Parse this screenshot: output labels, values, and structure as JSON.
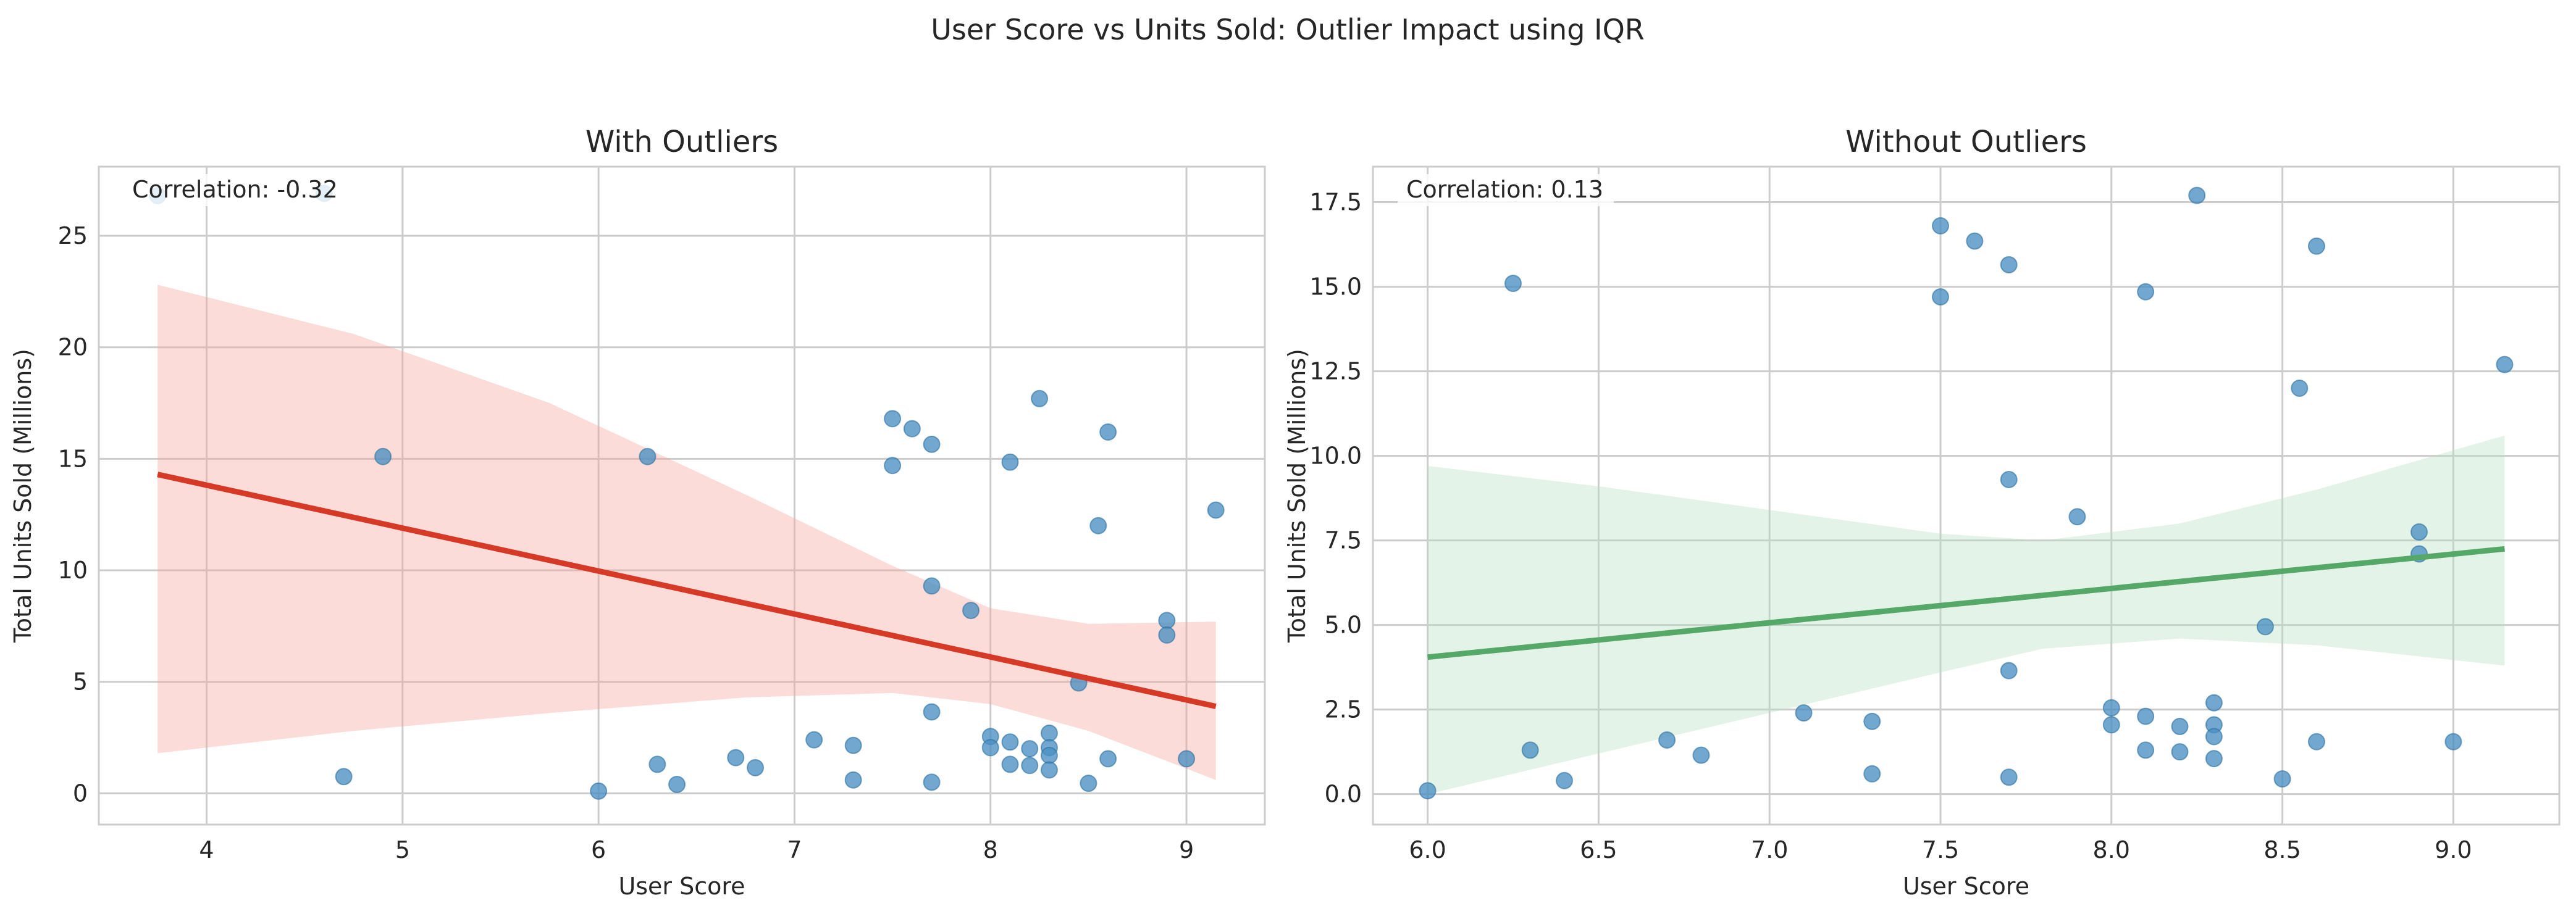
{
  "figure": {
    "suptitle": "User Score vs Units Sold: Outlier Impact using IQR"
  },
  "chart_data": [
    {
      "type": "scatter",
      "title": "With Outliers",
      "xlabel": "User Score",
      "ylabel": "Total Units Sold (Millions)",
      "xlim": [
        3.45,
        9.4
      ],
      "ylim": [
        -1.4,
        28.1
      ],
      "xticks": [
        4,
        5,
        6,
        7,
        8,
        9
      ],
      "yticks": [
        0,
        5,
        10,
        15,
        20,
        25
      ],
      "annotation": "Correlation: -0.32",
      "grid": true,
      "points": [
        {
          "x": 3.75,
          "y": 26.8
        },
        {
          "x": 4.6,
          "y": 26.9
        },
        {
          "x": 4.7,
          "y": 0.75
        },
        {
          "x": 4.9,
          "y": 15.1
        },
        {
          "x": 6.0,
          "y": 0.1
        },
        {
          "x": 6.25,
          "y": 15.1
        },
        {
          "x": 6.3,
          "y": 1.3
        },
        {
          "x": 6.4,
          "y": 0.4
        },
        {
          "x": 6.7,
          "y": 1.6
        },
        {
          "x": 6.8,
          "y": 1.15
        },
        {
          "x": 7.1,
          "y": 2.4
        },
        {
          "x": 7.3,
          "y": 2.15
        },
        {
          "x": 7.3,
          "y": 0.6
        },
        {
          "x": 7.5,
          "y": 16.8
        },
        {
          "x": 7.5,
          "y": 14.7
        },
        {
          "x": 7.6,
          "y": 16.35
        },
        {
          "x": 7.7,
          "y": 15.65
        },
        {
          "x": 7.7,
          "y": 9.3
        },
        {
          "x": 7.7,
          "y": 3.65
        },
        {
          "x": 7.7,
          "y": 0.5
        },
        {
          "x": 7.9,
          "y": 8.2
        },
        {
          "x": 8.0,
          "y": 2.55
        },
        {
          "x": 8.0,
          "y": 2.05
        },
        {
          "x": 8.1,
          "y": 14.85
        },
        {
          "x": 8.1,
          "y": 2.3
        },
        {
          "x": 8.1,
          "y": 1.3
        },
        {
          "x": 8.2,
          "y": 2.0
        },
        {
          "x": 8.2,
          "y": 1.25
        },
        {
          "x": 8.25,
          "y": 17.7
        },
        {
          "x": 8.3,
          "y": 2.7
        },
        {
          "x": 8.3,
          "y": 2.05
        },
        {
          "x": 8.3,
          "y": 1.7
        },
        {
          "x": 8.3,
          "y": 1.05
        },
        {
          "x": 8.45,
          "y": 4.95
        },
        {
          "x": 8.5,
          "y": 0.45
        },
        {
          "x": 8.55,
          "y": 12.0
        },
        {
          "x": 8.6,
          "y": 16.2
        },
        {
          "x": 8.6,
          "y": 1.55
        },
        {
          "x": 8.9,
          "y": 7.75
        },
        {
          "x": 8.9,
          "y": 7.1
        },
        {
          "x": 9.0,
          "y": 1.55
        },
        {
          "x": 9.15,
          "y": 12.7
        }
      ],
      "regression": {
        "x": [
          3.75,
          9.15
        ],
        "y": [
          14.3,
          3.9
        ]
      },
      "ci_band": [
        {
          "x": 3.75,
          "lo": 1.8,
          "hi": 22.8
        },
        {
          "x": 4.75,
          "lo": 2.8,
          "hi": 20.6
        },
        {
          "x": 5.75,
          "lo": 3.6,
          "hi": 17.5
        },
        {
          "x": 6.75,
          "lo": 4.3,
          "hi": 13.4
        },
        {
          "x": 7.5,
          "lo": 4.5,
          "hi": 10.2
        },
        {
          "x": 8.0,
          "lo": 4.0,
          "hi": 8.3
        },
        {
          "x": 8.5,
          "lo": 2.8,
          "hi": 7.6
        },
        {
          "x": 9.15,
          "lo": 0.6,
          "hi": 7.7
        }
      ],
      "colors": {
        "points": "#4a90c2",
        "line": "#d63a26",
        "band": "#f4a49a"
      }
    },
    {
      "type": "scatter",
      "title": "Without Outliers",
      "xlabel": "User Score",
      "ylabel": "Total Units Sold (Millions)",
      "xlim": [
        5.84,
        9.31
      ],
      "ylim": [
        -0.9,
        18.55
      ],
      "xticks": [
        6.0,
        6.5,
        7.0,
        7.5,
        8.0,
        8.5,
        9.0
      ],
      "yticks": [
        0.0,
        2.5,
        5.0,
        7.5,
        10.0,
        12.5,
        15.0,
        17.5
      ],
      "annotation": "Correlation: 0.13",
      "grid": true,
      "points": [
        {
          "x": 6.0,
          "y": 0.1
        },
        {
          "x": 6.25,
          "y": 15.1
        },
        {
          "x": 6.3,
          "y": 1.3
        },
        {
          "x": 6.4,
          "y": 0.4
        },
        {
          "x": 6.7,
          "y": 1.6
        },
        {
          "x": 6.8,
          "y": 1.15
        },
        {
          "x": 7.1,
          "y": 2.4
        },
        {
          "x": 7.3,
          "y": 2.15
        },
        {
          "x": 7.3,
          "y": 0.6
        },
        {
          "x": 7.5,
          "y": 16.8
        },
        {
          "x": 7.5,
          "y": 14.7
        },
        {
          "x": 7.6,
          "y": 16.35
        },
        {
          "x": 7.7,
          "y": 15.65
        },
        {
          "x": 7.7,
          "y": 9.3
        },
        {
          "x": 7.7,
          "y": 3.65
        },
        {
          "x": 7.7,
          "y": 0.5
        },
        {
          "x": 7.9,
          "y": 8.2
        },
        {
          "x": 8.0,
          "y": 2.55
        },
        {
          "x": 8.0,
          "y": 2.05
        },
        {
          "x": 8.1,
          "y": 14.85
        },
        {
          "x": 8.1,
          "y": 2.3
        },
        {
          "x": 8.1,
          "y": 1.3
        },
        {
          "x": 8.2,
          "y": 2.0
        },
        {
          "x": 8.2,
          "y": 1.25
        },
        {
          "x": 8.25,
          "y": 17.7
        },
        {
          "x": 8.3,
          "y": 2.7
        },
        {
          "x": 8.3,
          "y": 2.05
        },
        {
          "x": 8.3,
          "y": 1.7
        },
        {
          "x": 8.3,
          "y": 1.05
        },
        {
          "x": 8.45,
          "y": 4.95
        },
        {
          "x": 8.5,
          "y": 0.45
        },
        {
          "x": 8.55,
          "y": 12.0
        },
        {
          "x": 8.6,
          "y": 16.2
        },
        {
          "x": 8.6,
          "y": 1.55
        },
        {
          "x": 8.9,
          "y": 7.75
        },
        {
          "x": 8.9,
          "y": 7.1
        },
        {
          "x": 9.0,
          "y": 1.55
        },
        {
          "x": 9.15,
          "y": 12.7
        }
      ],
      "regression": {
        "x": [
          6.0,
          9.15
        ],
        "y": [
          4.05,
          7.25
        ]
      },
      "ci_band": [
        {
          "x": 6.0,
          "lo": 0.0,
          "hi": 9.7
        },
        {
          "x": 6.5,
          "lo": 1.2,
          "hi": 9.1
        },
        {
          "x": 7.0,
          "lo": 2.4,
          "hi": 8.4
        },
        {
          "x": 7.5,
          "lo": 3.6,
          "hi": 7.7
        },
        {
          "x": 7.8,
          "lo": 4.3,
          "hi": 7.5
        },
        {
          "x": 8.2,
          "lo": 4.6,
          "hi": 8.0
        },
        {
          "x": 8.6,
          "lo": 4.4,
          "hi": 9.0
        },
        {
          "x": 9.15,
          "lo": 3.8,
          "hi": 10.6
        }
      ],
      "colors": {
        "points": "#4a90c2",
        "line": "#55a868",
        "band": "#b9dfc0"
      }
    }
  ]
}
